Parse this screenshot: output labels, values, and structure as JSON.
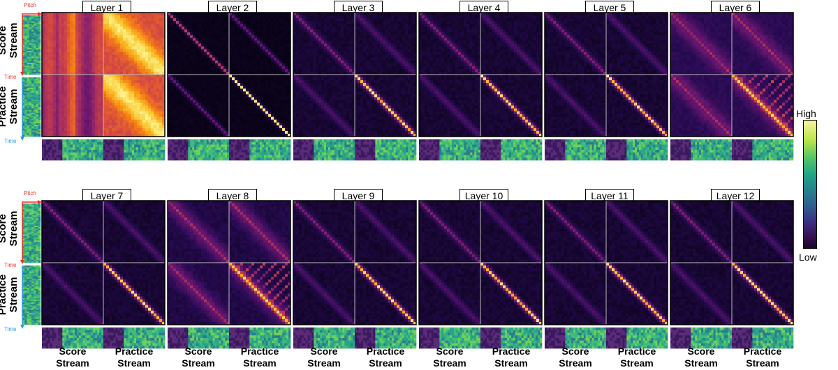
{
  "layers": [
    {
      "label": "Layer 1",
      "type": "diffuse"
    },
    {
      "label": "Layer 2",
      "type": "sharp"
    },
    {
      "label": "Layer 3",
      "type": "diag"
    },
    {
      "label": "Layer 4",
      "type": "diag"
    },
    {
      "label": "Layer 5",
      "type": "diag"
    },
    {
      "label": "Layer 6",
      "type": "rich"
    },
    {
      "label": "Layer 7",
      "type": "diag"
    },
    {
      "label": "Layer 8",
      "type": "rich"
    },
    {
      "label": "Layer 9",
      "type": "diag"
    },
    {
      "label": "Layer 10",
      "type": "diag"
    },
    {
      "label": "Layer 11",
      "type": "diag"
    },
    {
      "label": "Layer 12",
      "type": "diag"
    }
  ],
  "row_labels": {
    "score": "Score\nStream",
    "practice": "Practice\nStream"
  },
  "axis_labels": {
    "pitch": "Pitch",
    "time": "Time"
  },
  "colorbar": {
    "high": "High",
    "low": "Low"
  },
  "bottom_labels": {
    "score": "Score\nStream",
    "practice": "Practice\nStream"
  },
  "colors": {
    "pitch_axis": "#e8322b",
    "time_axis_score": "#e8322b",
    "time_axis_practice": "#2a9de0"
  }
}
